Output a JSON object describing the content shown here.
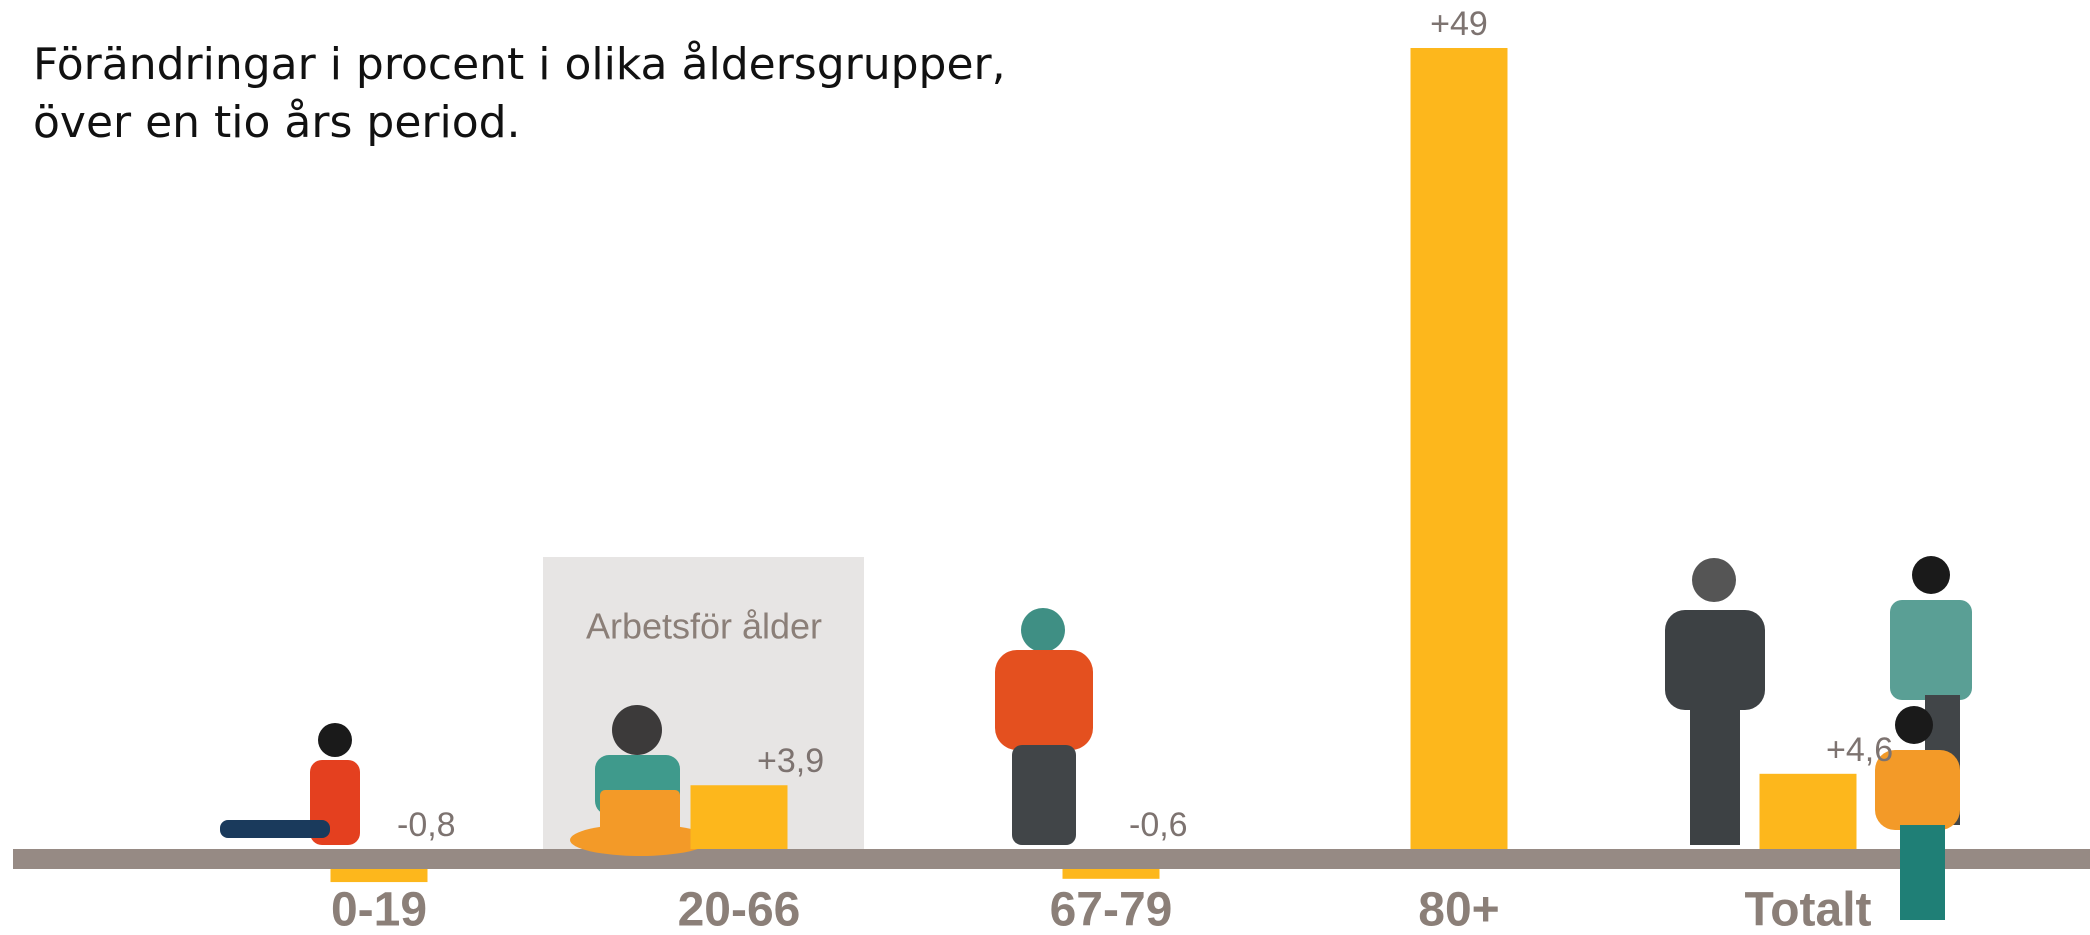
{
  "chart_data": {
    "type": "bar",
    "title_lines": [
      "Förändringar i procent i olika åldersgrupper,",
      "över en tio års period."
    ],
    "annotation": "Arbetsför ålder",
    "categories": [
      "0-19",
      "20-66",
      "67-79",
      "80+",
      "Totalt"
    ],
    "values": [
      -0.8,
      3.9,
      -0.6,
      49,
      4.6
    ],
    "value_labels": [
      "-0,8",
      "+3,9",
      "-0,6",
      "+49",
      "+4,6"
    ],
    "color": "#fdb71c"
  }
}
